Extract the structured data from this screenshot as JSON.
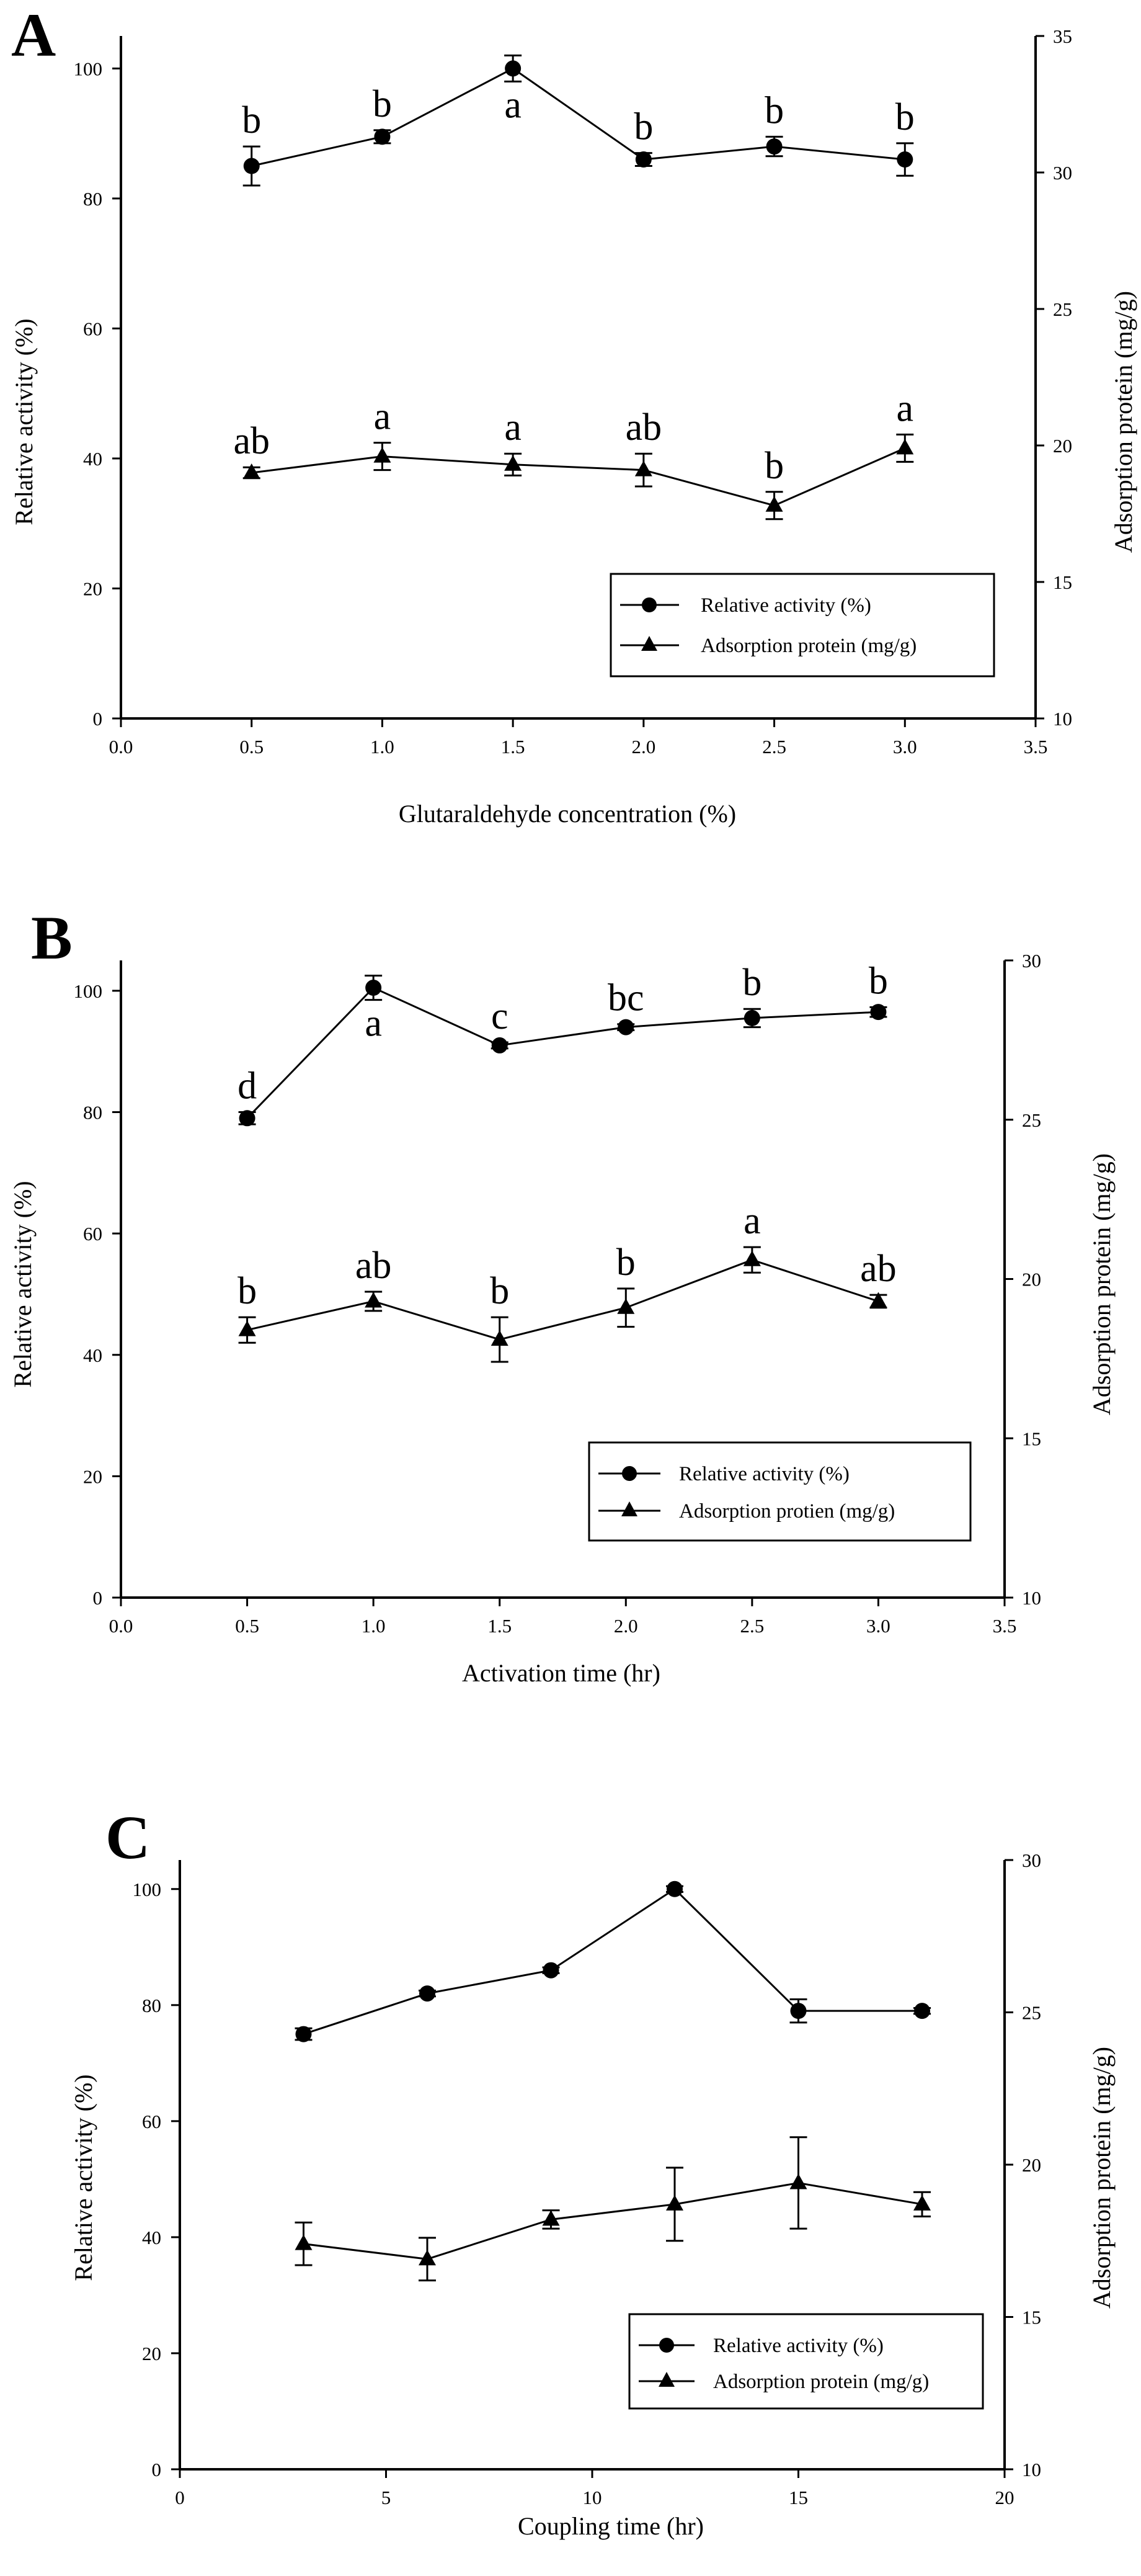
{
  "chart_data": [
    {
      "type": "line",
      "panel_label": "A",
      "xlabel": "Glutaraldehyde concentration (%)",
      "ylabel": "Relative activity (%)",
      "y2label": "Adsorption protein (mg/g)",
      "xlim": [
        0,
        3.5
      ],
      "ylim": [
        0,
        105
      ],
      "y2lim": [
        10,
        35
      ],
      "xticks": [
        "0.0",
        "0.5",
        "1.0",
        "1.5",
        "2.0",
        "2.5",
        "3.0",
        "3.5"
      ],
      "yticks": [
        "0",
        "20",
        "40",
        "60",
        "80",
        "100"
      ],
      "y2ticks": [
        "10",
        "15",
        "20",
        "25",
        "30",
        "35"
      ],
      "legend_position": "bottom-right",
      "series": [
        {
          "name": "Relative activity (%)",
          "axis": "left",
          "marker": "circle",
          "x": [
            0.5,
            1.0,
            1.5,
            2.0,
            2.5,
            3.0
          ],
          "values": [
            85.0,
            89.5,
            100.0,
            86.0,
            88.0,
            86.0
          ],
          "errors": [
            3.0,
            1.0,
            2.0,
            1.0,
            1.5,
            2.5
          ],
          "letters": [
            "b",
            "b",
            "a",
            "b",
            "b",
            "b"
          ],
          "letter_side": [
            "above",
            "above",
            "below",
            "above",
            "above",
            "above"
          ]
        },
        {
          "name": "Adsorption protein (mg/g)",
          "axis": "right",
          "marker": "triangle",
          "x": [
            0.5,
            1.0,
            1.5,
            2.0,
            2.5,
            3.0
          ],
          "values": [
            19.0,
            19.6,
            19.3,
            19.1,
            17.8,
            19.9
          ],
          "errors": [
            0.2,
            0.5,
            0.4,
            0.6,
            0.5,
            0.5
          ],
          "letters": [
            "ab",
            "a",
            "a",
            "ab",
            "b",
            "a"
          ],
          "letter_side": [
            "above",
            "above",
            "above",
            "above",
            "above",
            "above"
          ]
        }
      ]
    },
    {
      "type": "line",
      "panel_label": "B",
      "xlabel": "Activation time (hr)",
      "ylabel": "Relative activity (%)",
      "y2label": "Adsorption protein (mg/g)",
      "xlim": [
        0,
        3.5
      ],
      "ylim": [
        0,
        105
      ],
      "y2lim": [
        10,
        30
      ],
      "xticks": [
        "0.0",
        "0.5",
        "1.0",
        "1.5",
        "2.0",
        "2.5",
        "3.0",
        "3.5"
      ],
      "yticks": [
        "0",
        "20",
        "40",
        "60",
        "80",
        "100"
      ],
      "y2ticks": [
        "10",
        "15",
        "20",
        "25",
        "30"
      ],
      "legend_position": "bottom-right",
      "series": [
        {
          "name": "Relative activity (%)",
          "axis": "left",
          "marker": "circle",
          "x": [
            0.5,
            1.0,
            1.5,
            2.0,
            2.5,
            3.0
          ],
          "values": [
            79.0,
            100.5,
            91.0,
            94.0,
            95.5,
            96.5
          ],
          "errors": [
            1.0,
            2.0,
            0.5,
            0.5,
            1.5,
            0.8
          ],
          "letters": [
            "d",
            "a",
            "c",
            "bc",
            "b",
            "b"
          ],
          "letter_side": [
            "above",
            "below",
            "above",
            "above",
            "above",
            "above"
          ]
        },
        {
          "name": "Adsorption protien (mg/g)",
          "axis": "right",
          "marker": "triangle",
          "x": [
            0.5,
            1.0,
            1.5,
            2.0,
            2.5,
            3.0
          ],
          "values": [
            18.4,
            19.3,
            18.1,
            19.1,
            20.6,
            19.3
          ],
          "errors": [
            0.4,
            0.3,
            0.7,
            0.6,
            0.4,
            0.2
          ],
          "letters": [
            "b",
            "ab",
            "b",
            "b",
            "a",
            "ab"
          ],
          "letter_side": [
            "above",
            "above",
            "above",
            "above",
            "above",
            "above"
          ]
        }
      ]
    },
    {
      "type": "line",
      "panel_label": "C",
      "xlabel": "Coupling time (hr)",
      "ylabel": "Relative activity (%)",
      "y2label": "Adsorption protein (mg/g)",
      "xlim": [
        0,
        20
      ],
      "ylim": [
        0,
        105
      ],
      "y2lim": [
        10,
        30
      ],
      "xticks": [
        "0",
        "5",
        "10",
        "15",
        "20"
      ],
      "yticks": [
        "0",
        "20",
        "40",
        "60",
        "80",
        "100"
      ],
      "y2ticks": [
        "10",
        "15",
        "20",
        "25",
        "30"
      ],
      "legend_position": "bottom-right",
      "series": [
        {
          "name": "Relative activity (%)",
          "axis": "left",
          "marker": "circle",
          "x": [
            3,
            6,
            9,
            12,
            15,
            18
          ],
          "values": [
            75.0,
            82.0,
            86.0,
            100.0,
            79.0,
            79.0
          ],
          "errors": [
            1.0,
            0.5,
            0.5,
            0.5,
            2.0,
            0.5
          ],
          "letters": [],
          "letter_side": []
        },
        {
          "name": "Adsorption protein (mg/g)",
          "axis": "right",
          "marker": "triangle",
          "x": [
            3,
            6,
            9,
            12,
            15,
            18
          ],
          "values": [
            17.4,
            16.9,
            18.2,
            18.7,
            19.4,
            18.7
          ],
          "errors": [
            0.7,
            0.7,
            0.3,
            1.2,
            1.5,
            0.4
          ],
          "letters": [],
          "letter_side": []
        }
      ]
    }
  ]
}
